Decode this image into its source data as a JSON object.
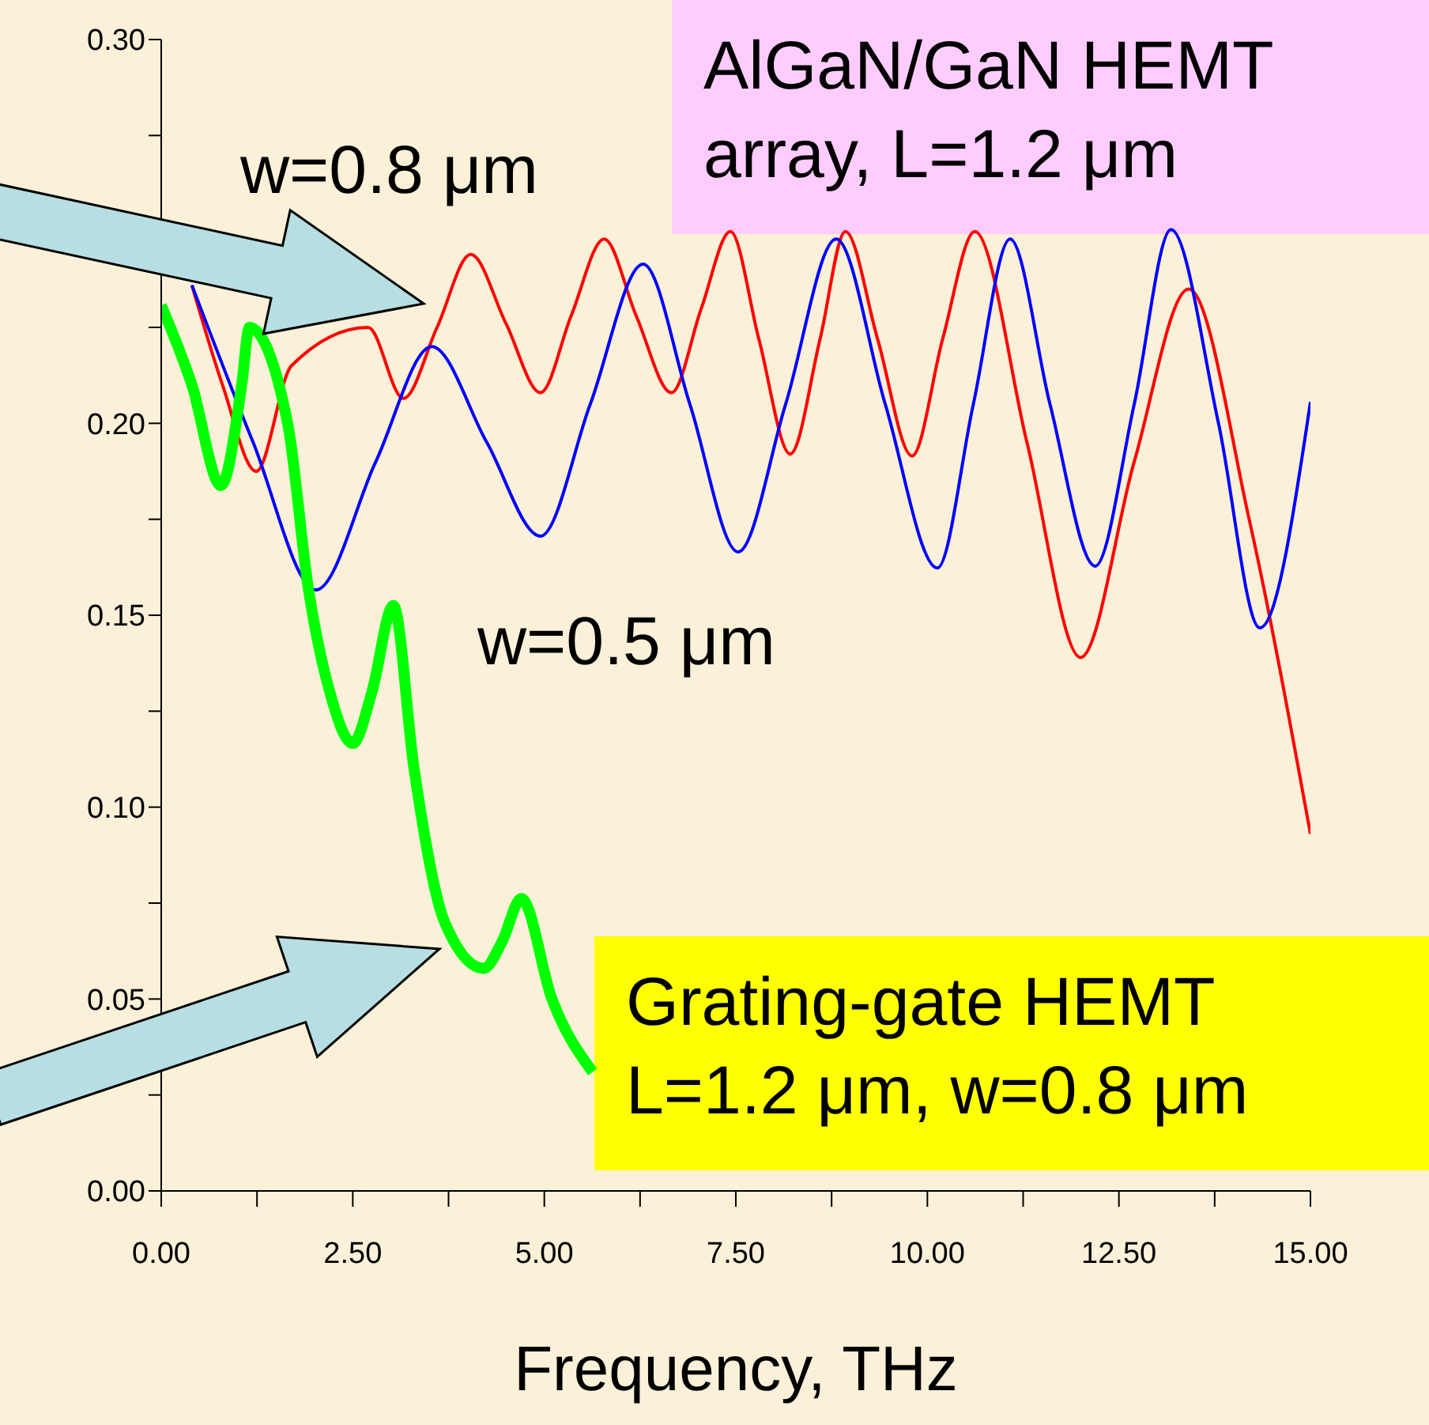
{
  "chart_data": {
    "type": "line",
    "xlabel": "Frequency, THz",
    "annotations": [
      "AlGaN/GaN HEMT\narray, L=1.2 μm",
      "w=0.8 μm",
      "w=0.5 μm",
      "Grating-gate HEMT\nL=1.2 μm, w=0.8 μm"
    ],
    "series": [
      {
        "color": "#ff0000",
        "x": [
          0.4,
          0.8,
          1.24,
          1.7,
          2.7,
          3.16,
          3.6,
          4.04,
          4.5,
          4.95,
          5.35,
          5.78,
          6.2,
          6.66,
          7.05,
          7.43,
          7.8,
          8.21,
          8.6,
          8.93,
          9.35,
          9.8,
          10.2,
          10.62,
          11.3,
          12.0,
          12.7,
          13.41,
          14.2,
          15
        ],
        "values": [
          0.236,
          0.21,
          0.1875,
          0.215,
          0.225,
          0.2065,
          0.225,
          0.244,
          0.226,
          0.208,
          0.228,
          0.248,
          0.228,
          0.208,
          0.23,
          0.25,
          0.222,
          0.192,
          0.222,
          0.25,
          0.222,
          0.1915,
          0.222,
          0.25,
          0.195,
          0.139,
          0.19,
          0.235,
          0.175,
          0.093
        ]
      },
      {
        "color": "#0000ff",
        "x": [
          0.4,
          1.2,
          2.02,
          2.8,
          3.53,
          4.25,
          4.95,
          5.6,
          6.29,
          6.9,
          7.53,
          8.15,
          8.81,
          9.45,
          10.13,
          10.6,
          11.08,
          11.6,
          12.19,
          12.7,
          13.18,
          13.8,
          14.34,
          15
        ],
        "values": [
          0.236,
          0.195,
          0.1566,
          0.19,
          0.22,
          0.195,
          0.1706,
          0.205,
          0.2415,
          0.205,
          0.1665,
          0.205,
          0.248,
          0.205,
          0.1623,
          0.205,
          0.248,
          0.205,
          0.1628,
          0.205,
          0.2505,
          0.2,
          0.1467,
          0.2056
        ]
      },
      {
        "color": "#00ff00",
        "x": [
          0,
          0.4,
          0.78,
          1.05,
          1.15,
          1.65,
          1.92,
          2.2,
          2.5,
          2.75,
          3.03,
          3.3,
          3.7,
          4.21,
          4.45,
          4.7,
          5.1,
          5.63
        ],
        "values": [
          0.2307,
          0.21,
          0.1838,
          0.21,
          0.225,
          0.2,
          0.157,
          0.13,
          0.1166,
          0.13,
          0.1525,
          0.11,
          0.07,
          0.058,
          0.065,
          0.0762,
          0.05,
          0.031
        ]
      }
    ],
    "xlim": [
      0,
      15
    ],
    "xticks": [
      {
        "value": 0,
        "label": "0.00"
      },
      {
        "value": 1.25,
        "label": null
      },
      {
        "value": 2.5,
        "label": "2.50"
      },
      {
        "value": 3.75,
        "label": null
      },
      {
        "value": 5,
        "label": "5.00"
      },
      {
        "value": 6.25,
        "label": null
      },
      {
        "value": 7.5,
        "label": "7.50"
      },
      {
        "value": 8.75,
        "label": null
      },
      {
        "value": 10,
        "label": "10.00"
      },
      {
        "value": 11.25,
        "label": null
      },
      {
        "value": 12.5,
        "label": "12.50"
      },
      {
        "value": 13.75,
        "label": null
      },
      {
        "value": 15,
        "label": "15.00"
      }
    ],
    "ylim": [
      0,
      0.3
    ],
    "yticks": [
      {
        "value": 0,
        "label": "0.00"
      },
      {
        "value": 0.025,
        "label": null
      },
      {
        "value": 0.05,
        "label": "0.05"
      },
      {
        "value": 0.075,
        "label": null
      },
      {
        "value": 0.1,
        "label": "0.10"
      },
      {
        "value": 0.125,
        "label": null
      },
      {
        "value": 0.15,
        "label": "0.15"
      },
      {
        "value": 0.175,
        "label": null
      },
      {
        "value": 0.2,
        "label": "0.20"
      },
      {
        "value": 0.225,
        "label": null
      },
      {
        "value": 0.25,
        "label": null
      },
      {
        "value": 0.275,
        "label": null
      },
      {
        "value": 0.3,
        "label": "0.30"
      }
    ],
    "grid": false,
    "marker": "none",
    "line_style": "solid"
  }
}
